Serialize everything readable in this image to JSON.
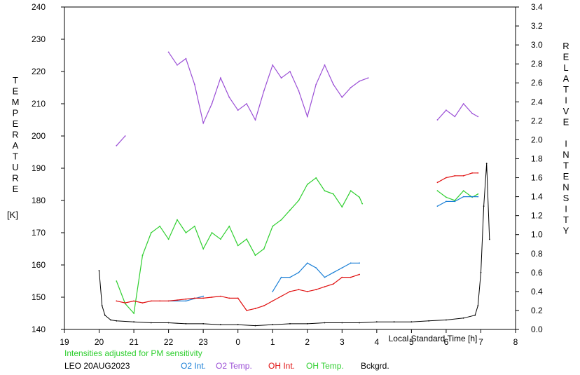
{
  "chart_data": {
    "type": "line",
    "title": "",
    "xlabel": "Local Standard Time [h]",
    "ylabel_left_letters": [
      "T",
      "E",
      "M",
      "P",
      "E",
      "R",
      "A",
      "T",
      "U",
      "R",
      "E"
    ],
    "ylabel_left_unit": "[K]",
    "ylabel_right_letters": [
      "R",
      "E",
      "L",
      "A",
      "T",
      "I",
      "V",
      "E",
      "",
      "I",
      "N",
      "T",
      "E",
      "N",
      "S",
      "I",
      "T",
      "Y"
    ],
    "x_ticks": [
      "19",
      "20",
      "21",
      "22",
      "23",
      "0",
      "1",
      "2",
      "3",
      "4",
      "5",
      "6",
      "7",
      "8"
    ],
    "xlim_hours_since_19": [
      0,
      13
    ],
    "y_left_ticks": [
      140,
      150,
      160,
      170,
      180,
      190,
      200,
      210,
      220,
      230,
      240
    ],
    "y_left_lim": [
      140,
      240
    ],
    "y_right_ticks": [
      "0.0",
      "0.2",
      "0.4",
      "0.6",
      "0.8",
      "1.0",
      "1.2",
      "1.4",
      "1.6",
      "1.8",
      "2.0",
      "2.2",
      "2.4",
      "2.6",
      "2.8",
      "3.0",
      "3.2",
      "3.4"
    ],
    "y_right_lim": [
      0,
      3.4
    ],
    "note": "Intensities adjusted for PM sensitivity",
    "station": "LEO 20AUG2023",
    "legend": [
      {
        "name": "O2 Int.",
        "color": "#1a7fd6"
      },
      {
        "name": "O2 Temp.",
        "color": "#9b4fd6"
      },
      {
        "name": "OH Int.",
        "color": "#e01010"
      },
      {
        "name": "OH Temp.",
        "color": "#2fcf2f"
      },
      {
        "name": "Bckgrd.",
        "color": "#000000"
      }
    ],
    "series": [
      {
        "name": "O2 Temp.",
        "axis": "left",
        "color": "#9b4fd6",
        "x": [
          "20:30",
          "20:45",
          "21:00",
          "21:30",
          "22:00",
          "22:15",
          "22:30",
          "22:45",
          "23:00",
          "23:15",
          "23:30",
          "23:45",
          "0:00",
          "0:15",
          "0:30",
          "0:45",
          "1:00",
          "1:15",
          "1:30",
          "1:45",
          "2:00",
          "2:15",
          "2:30",
          "2:45",
          "3:00",
          "3:15",
          "3:30",
          "3:45",
          "5:45",
          "6:00",
          "6:15",
          "6:30",
          "6:45",
          "6:55"
        ],
        "y": [
          197,
          200,
          null,
          null,
          226,
          222,
          224,
          216,
          204,
          210,
          218,
          212,
          208,
          210,
          205,
          214,
          222,
          218,
          220,
          214,
          206,
          216,
          222,
          216,
          212,
          215,
          217,
          218,
          205,
          208,
          206,
          210,
          207,
          206
        ]
      },
      {
        "name": "OH Temp.",
        "axis": "left",
        "color": "#2fcf2f",
        "x": [
          "20:30",
          "20:45",
          "21:00",
          "21:15",
          "21:30",
          "21:45",
          "22:00",
          "22:15",
          "22:30",
          "22:45",
          "23:00",
          "23:15",
          "23:30",
          "23:45",
          "0:00",
          "0:15",
          "0:30",
          "0:45",
          "1:00",
          "1:15",
          "1:30",
          "1:45",
          "2:00",
          "2:15",
          "2:30",
          "2:45",
          "3:00",
          "3:15",
          "3:30",
          "3:35",
          "5:45",
          "6:00",
          "6:15",
          "6:30",
          "6:45",
          "6:55"
        ],
        "y": [
          155,
          148,
          145,
          163,
          170,
          172,
          168,
          174,
          170,
          172,
          165,
          170,
          168,
          172,
          166,
          168,
          163,
          165,
          172,
          174,
          177,
          180,
          185,
          187,
          183,
          182,
          178,
          183,
          181,
          179,
          183,
          181,
          180,
          183,
          181,
          182
        ]
      },
      {
        "name": "O2 Int.",
        "axis": "right",
        "color": "#1a7fd6",
        "x": [
          "22:00",
          "22:30",
          "23:00",
          "1:00",
          "1:15",
          "1:30",
          "1:45",
          "2:00",
          "2:15",
          "2:30",
          "2:45",
          "3:00",
          "3:15",
          "3:30",
          "5:45",
          "6:00",
          "6:15",
          "6:30",
          "6:45",
          "6:55"
        ],
        "y": [
          0.3,
          0.3,
          0.35,
          0.4,
          0.55,
          0.55,
          0.6,
          0.7,
          0.65,
          0.55,
          0.6,
          0.65,
          0.7,
          0.7,
          1.3,
          1.35,
          1.35,
          1.4,
          1.4,
          1.4
        ]
      },
      {
        "name": "OH Int.",
        "axis": "right",
        "color": "#e01010",
        "x": [
          "20:30",
          "20:45",
          "21:00",
          "21:15",
          "21:30",
          "21:45",
          "22:00",
          "22:15",
          "22:30",
          "22:45",
          "23:00",
          "23:15",
          "23:30",
          "23:45",
          "0:00",
          "0:15",
          "0:30",
          "0:45",
          "1:00",
          "1:15",
          "1:30",
          "1:45",
          "2:00",
          "2:15",
          "2:30",
          "2:45",
          "3:00",
          "3:15",
          "3:30",
          "5:45",
          "6:00",
          "6:15",
          "6:30",
          "6:45",
          "6:55"
        ],
        "y": [
          0.3,
          0.28,
          0.3,
          0.28,
          0.3,
          0.3,
          0.3,
          0.31,
          0.32,
          0.33,
          0.33,
          0.34,
          0.35,
          0.33,
          0.33,
          0.2,
          0.22,
          0.25,
          0.3,
          0.35,
          0.4,
          0.42,
          0.4,
          0.42,
          0.45,
          0.48,
          0.55,
          0.55,
          0.58,
          1.55,
          1.6,
          1.62,
          1.62,
          1.65,
          1.65
        ]
      },
      {
        "name": "Bckgrd.",
        "axis": "right",
        "color": "#000000",
        "x": [
          "20:00",
          "20:05",
          "20:10",
          "20:20",
          "20:30",
          "21:00",
          "21:30",
          "22:00",
          "22:30",
          "23:00",
          "23:30",
          "0:00",
          "0:30",
          "1:00",
          "1:30",
          "2:00",
          "2:30",
          "3:00",
          "3:30",
          "4:00",
          "4:30",
          "5:00",
          "5:30",
          "6:00",
          "6:30",
          "6:50",
          "6:55",
          "7:00",
          "7:05",
          "7:10",
          "7:15"
        ],
        "y": [
          0.62,
          0.25,
          0.15,
          0.1,
          0.09,
          0.08,
          0.07,
          0.07,
          0.06,
          0.06,
          0.05,
          0.05,
          0.04,
          0.05,
          0.06,
          0.06,
          0.07,
          0.07,
          0.07,
          0.08,
          0.08,
          0.08,
          0.09,
          0.1,
          0.12,
          0.15,
          0.25,
          0.6,
          1.3,
          1.75,
          0.95
        ]
      }
    ]
  }
}
